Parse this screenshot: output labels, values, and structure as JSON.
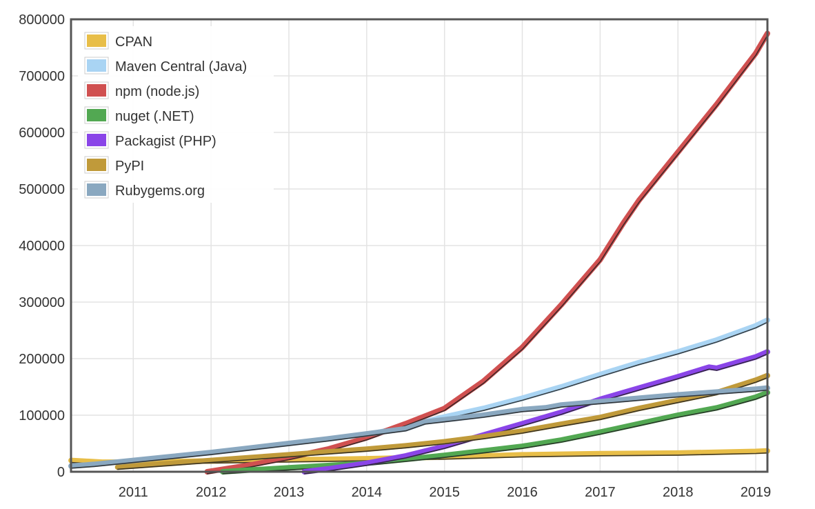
{
  "chart_data": {
    "type": "line",
    "title": "",
    "xlabel": "",
    "ylabel": "",
    "xlim": [
      2010.2,
      2019.15
    ],
    "ylim": [
      0,
      800000
    ],
    "grid": true,
    "legend_position": "top-left",
    "x_ticks": [
      2011,
      2012,
      2013,
      2014,
      2015,
      2016,
      2017,
      2018,
      2019
    ],
    "x_tick_labels": [
      "2011",
      "2012",
      "2013",
      "2014",
      "2015",
      "2016",
      "2017",
      "2018",
      "2019"
    ],
    "y_ticks": [
      0,
      100000,
      200000,
      300000,
      400000,
      500000,
      600000,
      700000,
      800000
    ],
    "y_tick_labels": [
      "0",
      "100000",
      "200000",
      "300000",
      "400000",
      "500000",
      "600000",
      "700000",
      "800000"
    ],
    "series": [
      {
        "name": "CPAN",
        "color": "#e8be48",
        "x": [
          2010.2,
          2010.6,
          2011,
          2012,
          2013,
          2014,
          2015,
          2016,
          2017,
          2018,
          2019,
          2019.15
        ],
        "values": [
          20000,
          17000,
          17000,
          19000,
          21000,
          23000,
          26000,
          30000,
          32000,
          33000,
          36000,
          37000
        ]
      },
      {
        "name": "Maven Central (Java)",
        "color": "#a9d4f3",
        "x": [
          2014.0,
          2014.5,
          2015,
          2015.5,
          2016,
          2016.5,
          2017,
          2017.5,
          2018,
          2018.5,
          2019,
          2019.15
        ],
        "values": [
          65000,
          80000,
          97000,
          112000,
          130000,
          150000,
          172000,
          193000,
          212000,
          233000,
          258000,
          268000
        ]
      },
      {
        "name": "npm (node.js)",
        "color": "#d05050",
        "x": [
          2011.95,
          2012.5,
          2013,
          2013.5,
          2014,
          2014.5,
          2015,
          2015.5,
          2016,
          2016.5,
          2017,
          2017.3,
          2017.5,
          2018,
          2018.5,
          2019,
          2019.15
        ],
        "values": [
          0,
          12000,
          25000,
          40000,
          60000,
          85000,
          112000,
          160000,
          220000,
          295000,
          375000,
          440000,
          480000,
          565000,
          650000,
          740000,
          775000
        ]
      },
      {
        "name": "nuget (.NET)",
        "color": "#52a852",
        "x": [
          2012.15,
          2012.5,
          2013,
          2013.5,
          2014,
          2014.5,
          2015,
          2015.5,
          2016,
          2016.5,
          2017,
          2017.5,
          2018,
          2018.5,
          2019,
          2019.15
        ],
        "values": [
          0,
          3000,
          7000,
          11000,
          15000,
          22000,
          29000,
          37000,
          45000,
          56000,
          70000,
          85000,
          100000,
          113000,
          132000,
          140000
        ]
      },
      {
        "name": "Packagist (PHP)",
        "color": "#8a45e8",
        "x": [
          2013.2,
          2013.5,
          2014,
          2014.5,
          2015,
          2015.5,
          2016,
          2016.5,
          2017,
          2017.5,
          2018,
          2018.4,
          2018.5,
          2019,
          2019.15
        ],
        "values": [
          0,
          5000,
          15000,
          28000,
          45000,
          65000,
          85000,
          105000,
          128000,
          148000,
          168000,
          185000,
          183000,
          203000,
          212000
        ]
      },
      {
        "name": "PyPI",
        "color": "#c09a3a",
        "x": [
          2010.8,
          2011,
          2011.5,
          2012,
          2012.5,
          2013,
          2013.5,
          2014,
          2014.5,
          2015,
          2015.5,
          2016,
          2016.5,
          2017,
          2017.5,
          2018,
          2018.5,
          2019,
          2019.15
        ],
        "values": [
          8000,
          10000,
          15000,
          20000,
          25000,
          30000,
          35000,
          40000,
          46000,
          53000,
          62000,
          72000,
          84000,
          96000,
          112000,
          126000,
          140000,
          162000,
          170000
        ]
      },
      {
        "name": "Rubygems.org",
        "color": "#8aa8c0",
        "x": [
          2010.2,
          2010.5,
          2011,
          2011.5,
          2012,
          2012.5,
          2013,
          2013.5,
          2014,
          2014.5,
          2014.75,
          2015,
          2015.5,
          2016,
          2016.3,
          2016.5,
          2017,
          2017.5,
          2018,
          2018.5,
          2019,
          2019.15
        ],
        "values": [
          10000,
          13000,
          20000,
          27000,
          34000,
          42000,
          50000,
          58000,
          67000,
          76000,
          88000,
          92000,
          100000,
          110000,
          113000,
          118000,
          124000,
          130000,
          136000,
          141000,
          146000,
          148000
        ]
      }
    ]
  }
}
